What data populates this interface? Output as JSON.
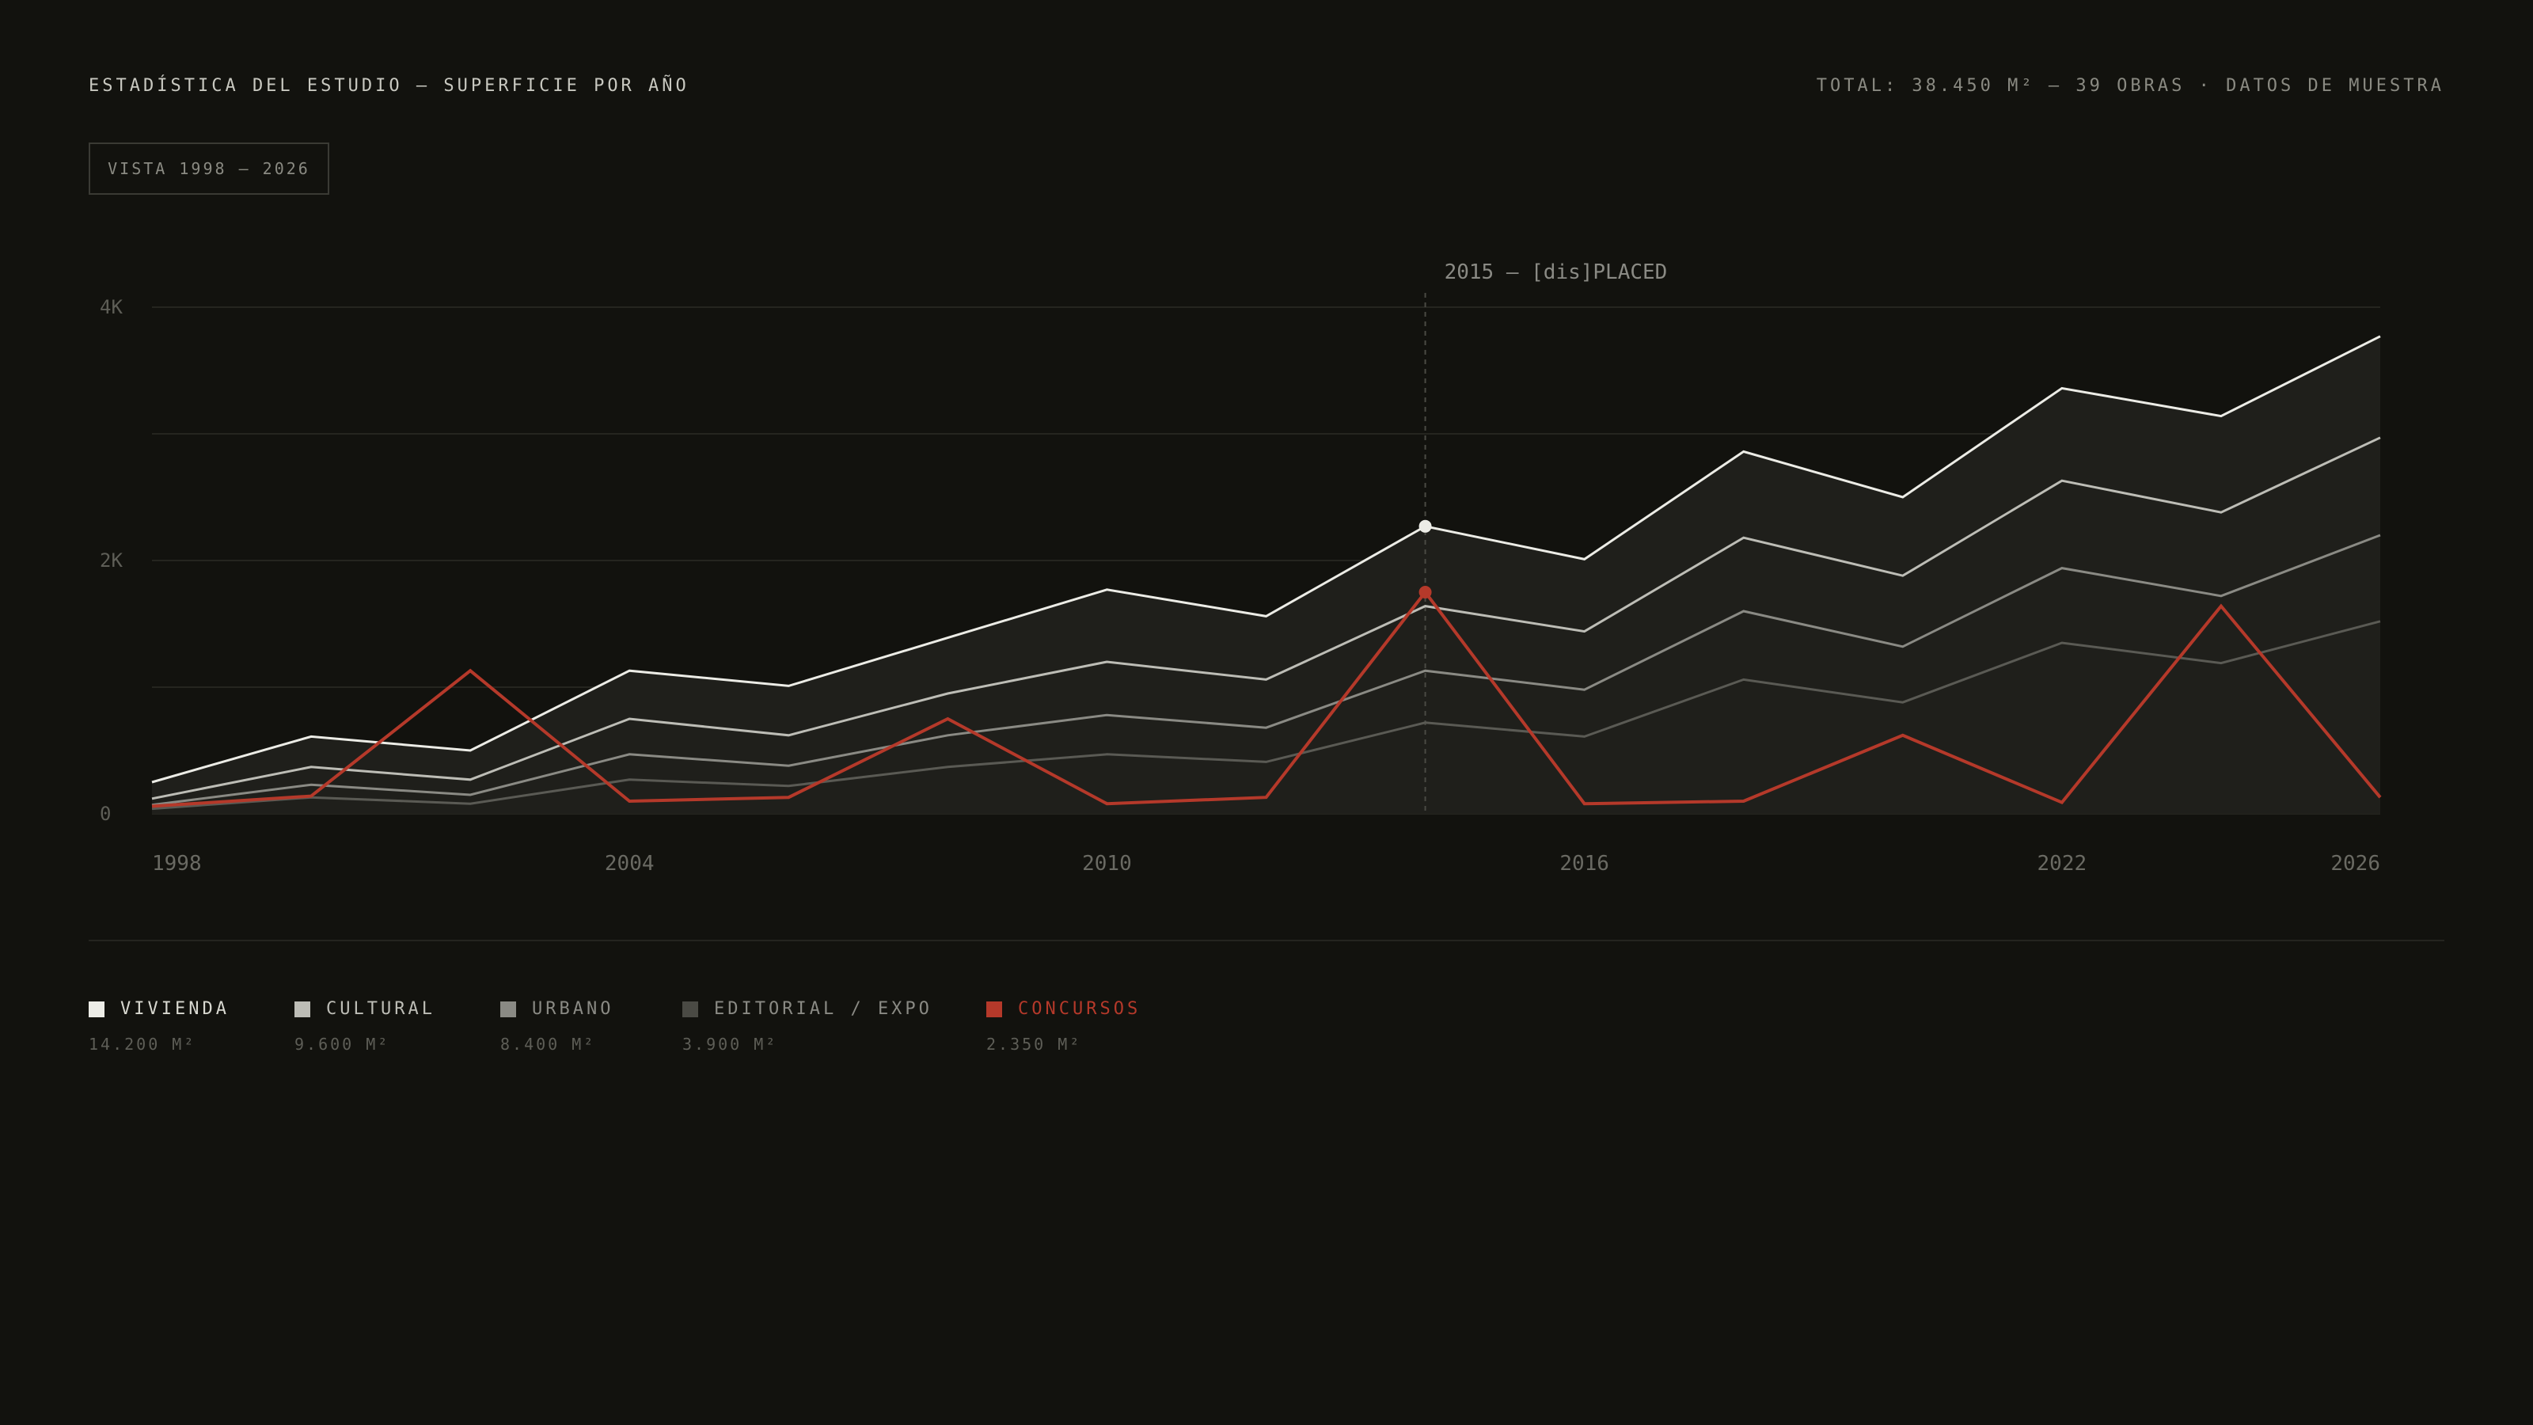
{
  "header": {
    "title": "ESTADÍSTICA DEL ESTUDIO — SUPERFICIE POR AÑO",
    "meta": "TOTAL: 38.450 M² — 39 OBRAS · DATOS DE MUESTRA"
  },
  "range_label": "VISTA 1998 — 2026",
  "chart_data": {
    "type": "area",
    "stacked": true,
    "x": [
      1998,
      2000,
      2002,
      2004,
      2006,
      2008,
      2010,
      2012,
      2014,
      2016,
      2018,
      2020,
      2022,
      2024,
      2026
    ],
    "x_ticks": [
      "1998",
      "2004",
      "2010",
      "2016",
      "2022",
      "2026"
    ],
    "y_ticks": [
      "0",
      "2K",
      "4K"
    ],
    "ylim": [
      0,
      4000
    ],
    "grid": true,
    "annotation": {
      "x": 2014,
      "label": "2015 — [dis]PLACED"
    },
    "series": [
      {
        "name": "EDITORIAL / EXPO",
        "color": "#5a5a54",
        "values": [
          40,
          130,
          80,
          270,
          220,
          370,
          470,
          410,
          720,
          610,
          1060,
          880,
          1350,
          1190,
          1520
        ]
      },
      {
        "name": "URBANO",
        "color": "#8a8a84",
        "values": [
          30,
          100,
          70,
          200,
          160,
          250,
          310,
          270,
          410,
          370,
          540,
          440,
          590,
          530,
          680
        ]
      },
      {
        "name": "CULTURAL",
        "color": "#bdbdb6",
        "values": [
          50,
          140,
          120,
          280,
          240,
          330,
          420,
          380,
          510,
          460,
          580,
          560,
          690,
          660,
          770
        ]
      },
      {
        "name": "VIVIENDA",
        "color": "#ecece6",
        "values": [
          130,
          240,
          230,
          380,
          390,
          440,
          570,
          500,
          630,
          570,
          680,
          620,
          730,
          760,
          800
        ]
      },
      {
        "name": "CONCURSOS",
        "color": "#b5392a",
        "overlay": true,
        "values": [
          60,
          140,
          1130,
          100,
          130,
          750,
          80,
          130,
          1750,
          80,
          100,
          620,
          90,
          1640,
          130
        ]
      }
    ],
    "highlight_index": 8
  },
  "legend": [
    {
      "label": "VIVIENDA",
      "value": "14.200 M²",
      "color": "#ecece6",
      "label_color": "#d8d8d0"
    },
    {
      "label": "CULTURAL",
      "value": "9.600 M²",
      "color": "#bdbdb6",
      "label_color": "#bdbdb6"
    },
    {
      "label": "URBANO",
      "value": "8.400 M²",
      "color": "#8a8a84",
      "label_color": "#8a8a84"
    },
    {
      "label": "EDITORIAL / EXPO",
      "value": "3.900 M²",
      "color": "#4a4a44",
      "label_color": "#8a8a84"
    },
    {
      "label": "CONCURSOS",
      "value": "2.350 M²",
      "color": "#b5392a",
      "label_color": "#b5392a"
    }
  ]
}
